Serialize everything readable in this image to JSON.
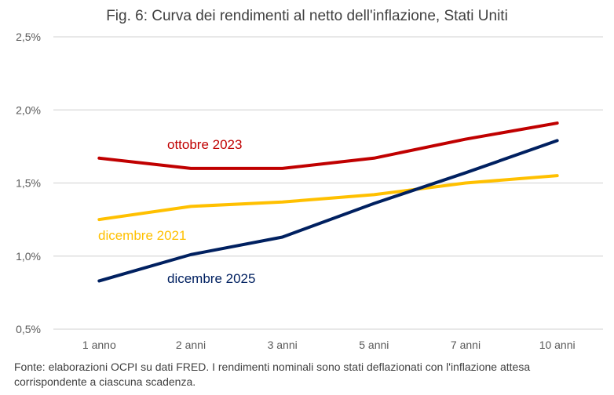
{
  "chart_data": {
    "type": "line",
    "title": "Fig. 6: Curva dei rendimenti al netto dell'inflazione, Stati Uniti",
    "xlabel": "",
    "ylabel": "",
    "categories": [
      "1 anno",
      "2 anni",
      "3 anni",
      "5 anni",
      "7 anni",
      "10 anni"
    ],
    "ylim": [
      0.5,
      2.5
    ],
    "yticks": [
      0.5,
      1.0,
      1.5,
      2.0,
      2.5
    ],
    "ytick_labels": [
      "0,5%",
      "1,0%",
      "1,5%",
      "2,0%",
      "2,5%"
    ],
    "grid": true,
    "series": [
      {
        "name": "ottobre 2023",
        "color": "#C00000",
        "values": [
          1.67,
          1.6,
          1.6,
          1.67,
          1.8,
          1.91
        ]
      },
      {
        "name": "dicembre 2021",
        "color": "#FFC000",
        "values": [
          1.25,
          1.34,
          1.37,
          1.42,
          1.5,
          1.55
        ]
      },
      {
        "name": "dicembre 2025",
        "color": "#002060",
        "values": [
          0.83,
          1.01,
          1.13,
          1.36,
          1.57,
          1.79
        ]
      }
    ]
  },
  "footnote": "Fonte: elaborazioni OCPI su dati FRED. I rendimenti nominali sono stati deflazionati con l'inflazione attesa corrispondente a ciascuna scadenza."
}
